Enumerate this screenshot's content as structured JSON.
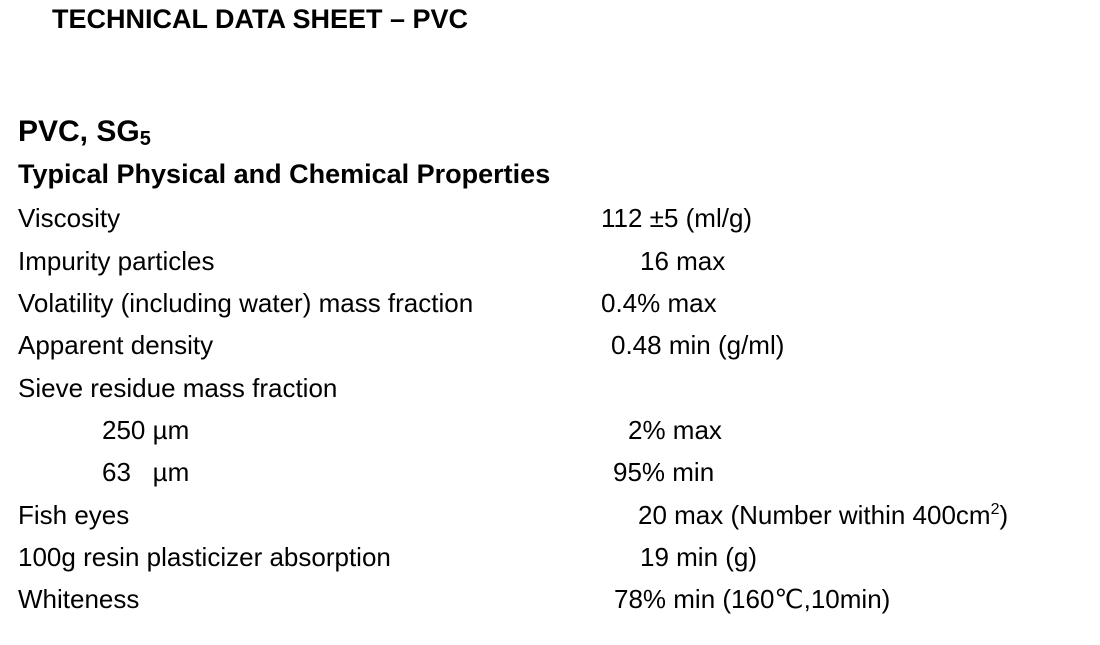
{
  "header": {
    "title": "TECHNICAL DATA SHEET – PVC"
  },
  "product": {
    "text": "PVC, SG",
    "subscript": "5"
  },
  "section": {
    "title": "Typical Physical and Chemical Properties"
  },
  "rows": [
    {
      "label": "Viscosity",
      "value": "112 ±5 (ml/g)"
    },
    {
      "label": "Impurity particles",
      "value": "16 max"
    },
    {
      "label": "Volatility (including water) mass fraction",
      "value": "0.4% max"
    },
    {
      "label": "Apparent density",
      "value": "0.48 min (g/ml)"
    },
    {
      "label": "Sieve residue mass fraction"
    },
    {
      "label": "250 µm",
      "value": "2% max"
    },
    {
      "label": "63   µm",
      "value": "95% min"
    },
    {
      "label": "Fish eyes",
      "value": {
        "text": "20 max (Number within 400cm",
        "superscript": "2",
        "after": ")"
      }
    },
    {
      "label": "100g resin plasticizer absorption",
      "value": "19 min (g)"
    },
    {
      "label": "Whiteness",
      "value": "78% min (160℃,10min)"
    }
  ]
}
